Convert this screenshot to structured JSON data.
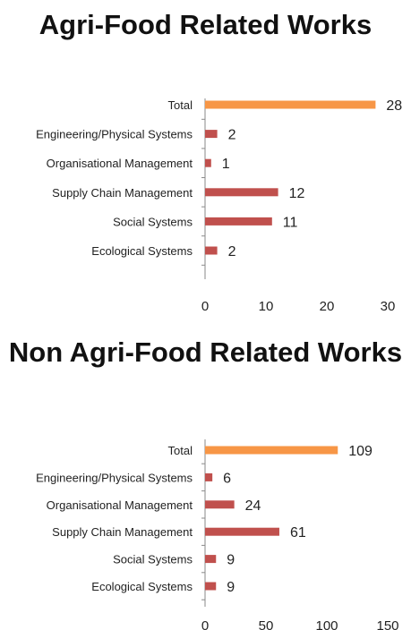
{
  "chart_data": [
    {
      "type": "bar",
      "orientation": "horizontal",
      "title": "Agri-Food Related Works",
      "categories": [
        "Total",
        "Engineering/Physical Systems",
        "Organisational Management",
        "Supply Chain Management",
        "Social Systems",
        "Ecological Systems"
      ],
      "values": [
        28,
        2,
        1,
        12,
        11,
        2
      ],
      "xlim": [
        0,
        30
      ],
      "xticks": [
        0,
        10,
        20,
        30
      ],
      "grid": false,
      "legend": "none",
      "colors": {
        "highlight": "#f79646",
        "bar": "#c0504d"
      }
    },
    {
      "type": "bar",
      "orientation": "horizontal",
      "title": "Non Agri-Food Related Works",
      "categories": [
        "Total",
        "Engineering/Physical Systems",
        "Organisational Management",
        "Supply Chain Management",
        "Social Systems",
        "Ecological Systems"
      ],
      "values": [
        109,
        6,
        24,
        61,
        9,
        9
      ],
      "xlim": [
        0,
        150
      ],
      "xticks": [
        0,
        50,
        100,
        150
      ],
      "grid": false,
      "legend": "none",
      "colors": {
        "highlight": "#f79646",
        "bar": "#c0504d"
      }
    }
  ]
}
